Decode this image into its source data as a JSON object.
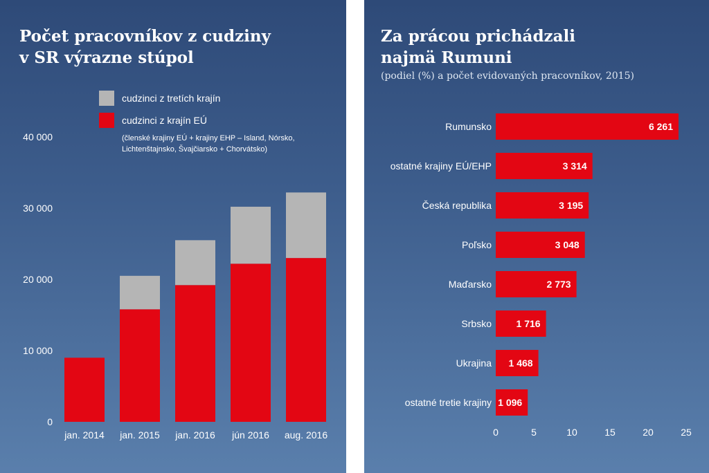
{
  "colors": {
    "eu": "#e30613",
    "third": "#b5b5b5",
    "bar": "#e30613"
  },
  "chart_data": [
    {
      "type": "bar",
      "stacked": true,
      "title_line1": "Počet pracovníkov z cudziny",
      "title_line2": "v SR výrazne stúpol",
      "categories": [
        "jan. 2014",
        "jan. 2015",
        "jan. 2016",
        "jún 2016",
        "aug. 2016"
      ],
      "series": [
        {
          "name": "cudzinci z krajín EÚ",
          "values": [
            9000,
            15800,
            19200,
            22200,
            23000
          ]
        },
        {
          "name": "cudzinci z tretích krajín",
          "values": [
            0,
            4700,
            6300,
            8000,
            9200
          ]
        }
      ],
      "legend_note_line1": "(členské krajiny EÚ + krajiny EHP – Island, Nórsko,",
      "legend_note_line2": "Lichtenštajnsko, Švajčiarsko + Chorvátsko)",
      "ylim": [
        0,
        40000
      ],
      "yticks": [
        0,
        10000,
        20000,
        30000,
        40000
      ],
      "ytick_labels": [
        "0",
        "10 000",
        "20 000",
        "30 000",
        "40 000"
      ],
      "grid": false
    },
    {
      "type": "bar",
      "orientation": "horizontal",
      "title_line1": "Za prácou prichádzali",
      "title_line2": "najmä Rumuni",
      "subtitle": "(podiel (%) a počet evidovaných pracovníkov, 2015)",
      "categories": [
        "Rumunsko",
        "ostatné krajiny EÚ/EHP",
        "Česká republika",
        "Poľsko",
        "Maďarsko",
        "Srbsko",
        "Ukrajina",
        "ostatné tretie krajiny"
      ],
      "counts": [
        "6 261",
        "3 314",
        "3 195",
        "3 048",
        "2 773",
        "1 716",
        "1 468",
        "1 096"
      ],
      "values": [
        24,
        12.7,
        12.2,
        11.7,
        10.6,
        6.6,
        5.6,
        4.2
      ],
      "xlim": [
        0,
        25
      ],
      "xticks": [
        0,
        5,
        10,
        15,
        20,
        25
      ],
      "xtick_labels": [
        "0",
        "5",
        "10",
        "15",
        "20",
        "25"
      ],
      "grid": false
    }
  ]
}
